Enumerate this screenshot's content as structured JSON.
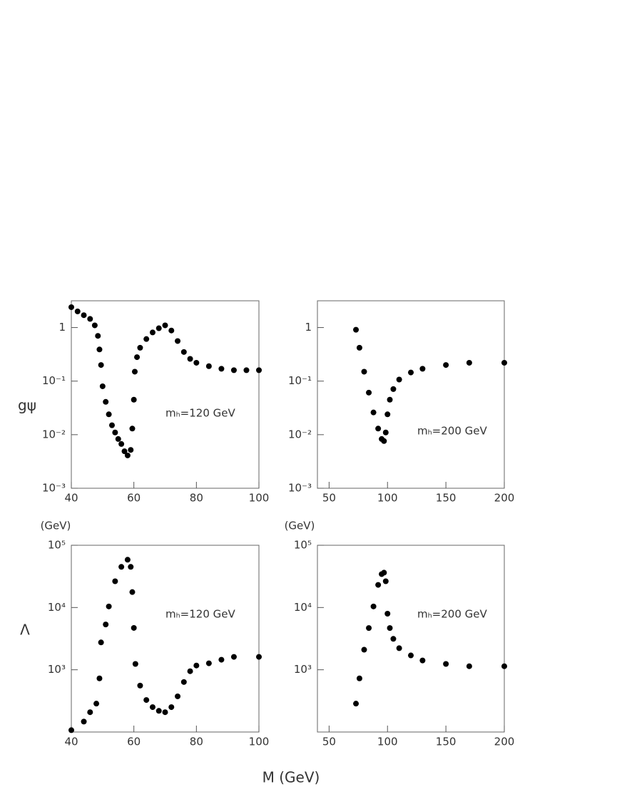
{
  "figure": {
    "x_label": "M (GeV)"
  },
  "chart_data": [
    {
      "type": "scatter",
      "annotation": "mₕ=120 GeV",
      "y_label": "gψ",
      "color": "#000000",
      "log_y": true,
      "x": [
        40,
        42,
        44,
        46,
        47.5,
        48.5,
        49,
        49.5,
        50,
        51,
        52,
        53,
        54,
        55,
        56,
        57,
        58,
        59,
        59.5,
        60,
        60.3,
        61,
        62,
        64,
        66,
        68,
        70,
        72,
        74,
        76,
        78,
        80,
        84,
        88,
        92,
        96,
        100
      ],
      "values": [
        2.4,
        2.0,
        1.7,
        1.45,
        1.1,
        0.7,
        0.39,
        0.2,
        0.08,
        0.041,
        0.024,
        0.015,
        0.011,
        0.0083,
        0.0067,
        0.0049,
        0.0041,
        0.0052,
        0.013,
        0.045,
        0.15,
        0.28,
        0.42,
        0.61,
        0.81,
        0.97,
        1.1,
        0.88,
        0.56,
        0.35,
        0.26,
        0.22,
        0.19,
        0.17,
        0.16,
        0.16,
        0.16
      ],
      "xlim": [
        40,
        100
      ],
      "xticks": [
        40,
        60,
        80,
        100
      ],
      "ylim": [
        0.001,
        3.16
      ],
      "yticks": [
        {
          "value": 0.001,
          "label": "10⁻³"
        },
        {
          "value": 0.01,
          "label": "10⁻²"
        },
        {
          "value": 0.1,
          "label": "10⁻¹"
        },
        1
      ]
    },
    {
      "type": "scatter",
      "annotation": "mₕ=200 GeV",
      "color": "#000000",
      "log_y": true,
      "x": [
        73,
        76,
        80,
        84,
        88,
        92,
        95,
        97,
        98.5,
        100,
        102,
        105,
        110,
        120,
        130,
        150,
        170,
        200
      ],
      "values": [
        0.91,
        0.42,
        0.15,
        0.061,
        0.026,
        0.013,
        0.0083,
        0.0076,
        0.011,
        0.024,
        0.045,
        0.071,
        0.107,
        0.145,
        0.17,
        0.2,
        0.22,
        0.22
      ],
      "xlim": [
        40,
        200
      ],
      "xticks": [
        50,
        100,
        150,
        200
      ],
      "ylim": [
        0.001,
        3.16
      ],
      "yticks": [
        {
          "value": 0.001,
          "label": "10⁻³"
        },
        {
          "value": 0.01,
          "label": "10⁻²"
        },
        {
          "value": 0.1,
          "label": "10⁻¹"
        },
        1
      ]
    },
    {
      "type": "scatter",
      "annotation": "mₕ=120 GeV",
      "y_label": "Λ",
      "y_unit": "(GeV)",
      "color": "#000000",
      "log_y": true,
      "x": [
        40,
        44,
        46,
        48,
        49,
        49.5,
        51,
        52,
        54,
        56,
        58,
        59,
        59.5,
        60,
        60.5,
        62,
        64,
        66,
        68,
        70,
        72,
        74,
        76,
        78,
        80,
        84,
        88,
        92,
        100
      ],
      "values": [
        107,
        147,
        208,
        286,
        727,
        2750,
        5340,
        10400,
        26400,
        45000,
        58600,
        45000,
        17700,
        4700,
        1240,
        557,
        327,
        251,
        219,
        208,
        251,
        374,
        636,
        948,
        1170,
        1270,
        1450,
        1610,
        1610
      ],
      "xlim": [
        40,
        100
      ],
      "xticks": [
        40,
        60,
        80,
        100
      ],
      "ylim": [
        100,
        100000
      ],
      "yticks": [
        {
          "value": 1000,
          "label": "10³"
        },
        {
          "value": 10000,
          "label": "10⁴"
        },
        {
          "value": 100000,
          "label": "10⁵"
        }
      ]
    },
    {
      "type": "scatter",
      "annotation": "mₕ=200 GeV",
      "y_unit": "(GeV)",
      "color": "#000000",
      "log_y": true,
      "x": [
        73,
        76,
        80,
        84,
        88,
        92,
        95,
        97,
        98.5,
        100,
        102,
        105,
        110,
        120,
        130,
        150,
        170,
        200
      ],
      "values": [
        286,
        727,
        2100,
        4680,
        10400,
        23100,
        34400,
        36300,
        26400,
        7960,
        4680,
        3140,
        2220,
        1700,
        1410,
        1240,
        1140,
        1140
      ],
      "xlim": [
        40,
        200
      ],
      "xticks": [
        50,
        100,
        150,
        200
      ],
      "ylim": [
        100,
        100000
      ],
      "yticks": [
        {
          "value": 1000,
          "label": "10³"
        },
        {
          "value": 10000,
          "label": "10⁴"
        },
        {
          "value": 100000,
          "label": "10⁵"
        }
      ]
    }
  ]
}
